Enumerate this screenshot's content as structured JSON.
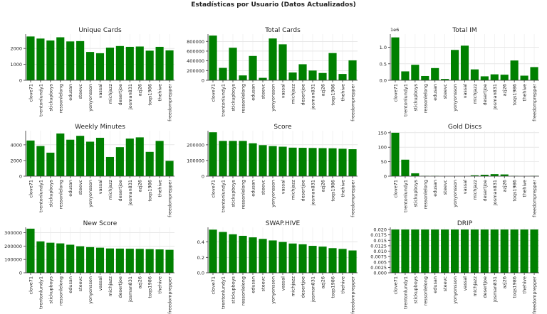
{
  "title": "Estadísticas por Usuario (Datos Actualizados)",
  "bar_color": "#008000",
  "users": [
    "clove71",
    "trentonlundy1",
    "stickupboys",
    "ressonlelong",
    "edusan",
    "steevc",
    "yonyonsson",
    "vassal",
    "michjazz",
    "desertjoe",
    "josman831",
    "azj26",
    "toqs1986",
    "thehive",
    "freedomprepper"
  ],
  "chart_data": [
    {
      "type": "bar",
      "title": "Unique Cards",
      "ylim": [
        0,
        2900
      ],
      "yticks": [
        0,
        1000,
        2000
      ],
      "ytick_labels": [
        "0",
        "1000",
        "2000"
      ],
      "values": [
        2750,
        2620,
        2500,
        2700,
        2440,
        2460,
        1780,
        1700,
        2050,
        2150,
        2100,
        2120,
        1860,
        2100,
        1880
      ]
    },
    {
      "type": "bar",
      "title": "Total Cards",
      "ylim": [
        0,
        950000
      ],
      "yticks": [
        0,
        200000,
        400000,
        600000,
        800000
      ],
      "ytick_labels": [
        "0",
        "200000",
        "400000",
        "600000",
        "800000"
      ],
      "values": [
        920000,
        255000,
        670000,
        100000,
        500000,
        50000,
        860000,
        740000,
        160000,
        330000,
        200000,
        150000,
        560000,
        130000,
        410000
      ]
    },
    {
      "type": "bar",
      "title": "Total IM",
      "ylim": [
        0,
        1400000
      ],
      "yticks": [
        0,
        500000,
        1000000
      ],
      "ytick_labels": [
        "0.0",
        "0.5",
        "1.0"
      ],
      "scale_label": "1e6",
      "values": [
        1300000,
        270000,
        470000,
        130000,
        370000,
        40000,
        920000,
        1050000,
        330000,
        120000,
        180000,
        170000,
        600000,
        140000,
        400000
      ]
    },
    {
      "type": "bar",
      "title": "Weekly Minutes",
      "ylim": [
        0,
        5800
      ],
      "yticks": [
        0,
        2000,
        4000
      ],
      "ytick_labels": [
        "0",
        "2000",
        "4000"
      ],
      "values": [
        4550,
        3850,
        3000,
        5450,
        4650,
        5150,
        4400,
        4900,
        2450,
        3700,
        4800,
        4950,
        3100,
        4500,
        1950
      ]
    },
    {
      "type": "bar",
      "title": "Score",
      "ylim": [
        0,
        290000
      ],
      "yticks": [
        0,
        100000,
        200000
      ],
      "ytick_labels": [
        "0",
        "100000",
        "200000"
      ],
      "values": [
        280000,
        225000,
        225000,
        225000,
        210000,
        198000,
        192000,
        188000,
        182000,
        181000,
        180000,
        179000,
        178000,
        175000,
        172000
      ]
    },
    {
      "type": "bar",
      "title": "Gold Discs",
      "ylim": [
        0,
        157
      ],
      "yticks": [
        0,
        50,
        100,
        150
      ],
      "ytick_labels": [
        "0",
        "50",
        "100",
        "150"
      ],
      "values": [
        150,
        57,
        10,
        1,
        1,
        0,
        0,
        0,
        3,
        5,
        7,
        6,
        1,
        0,
        1
      ]
    },
    {
      "type": "bar",
      "title": "New Score",
      "ylim": [
        0,
        340000
      ],
      "yticks": [
        0,
        100000,
        200000,
        300000
      ],
      "ytick_labels": [
        "0",
        "100000",
        "200000",
        "300000"
      ],
      "values": [
        330000,
        235000,
        225000,
        220000,
        210000,
        198000,
        192000,
        188000,
        182000,
        181000,
        180000,
        179000,
        177000,
        175000,
        172000
      ]
    },
    {
      "type": "bar",
      "title": "SWAP.HIVE",
      "ylim": [
        0,
        0.59
      ],
      "yticks": [
        0,
        0.2,
        0.4
      ],
      "ytick_labels": [
        "0.0",
        "0.2",
        "0.4"
      ],
      "values": [
        0.56,
        0.53,
        0.5,
        0.48,
        0.46,
        0.44,
        0.42,
        0.4,
        0.38,
        0.37,
        0.35,
        0.34,
        0.32,
        0.31,
        0.29
      ]
    },
    {
      "type": "bar",
      "title": "DRIP",
      "ylim": [
        0,
        0.021
      ],
      "yticks": [
        0,
        0.0025,
        0.005,
        0.0075,
        0.01,
        0.0125,
        0.015,
        0.0175,
        0.02
      ],
      "ytick_labels": [
        "0.000",
        "0.0025",
        "0.005",
        "0.0075",
        "0.010",
        "0.0125",
        "0.015",
        "0.0175",
        "0.020"
      ],
      "values": [
        0.02,
        0.02,
        0.02,
        0.02,
        0.02,
        0.02,
        0.02,
        0.02,
        0.02,
        0.02,
        0.02,
        0.02,
        0.02,
        0.02,
        0.02
      ]
    }
  ]
}
